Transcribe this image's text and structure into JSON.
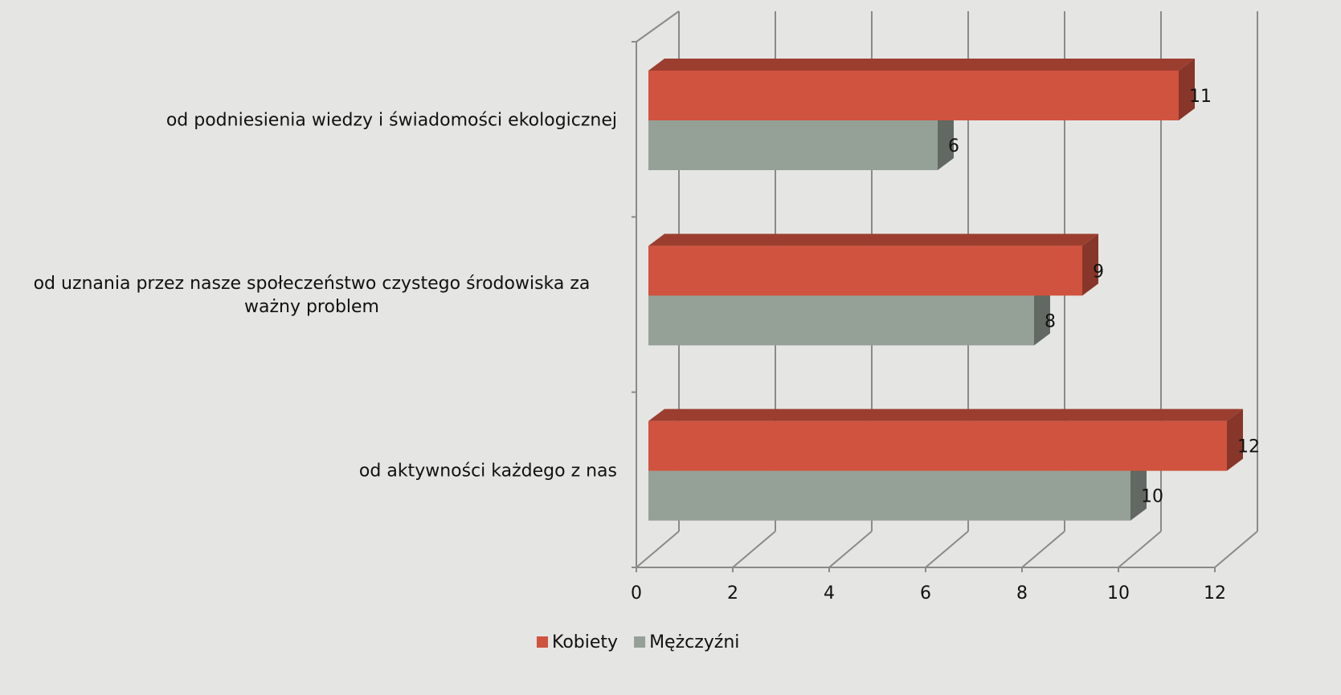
{
  "chart_data": {
    "type": "bar3d_horizontal",
    "categories": [
      "od podniesienia wiedzy i świadomości ekologicznej",
      "od uznania przez nasze społeczeństwo czystego środowiska za ważny problem",
      "od aktywności każdego z nas"
    ],
    "series": [
      {
        "name": "Kobiety",
        "color": "#d0533f",
        "values": [
          11,
          9,
          12
        ]
      },
      {
        "name": "Mężczyźni",
        "color": "#95a197",
        "values": [
          6,
          8,
          10
        ]
      }
    ],
    "xlim": [
      0,
      12
    ],
    "xticks": [
      0,
      2,
      4,
      6,
      8,
      10,
      12
    ],
    "grid": true,
    "legend": "bottom"
  }
}
